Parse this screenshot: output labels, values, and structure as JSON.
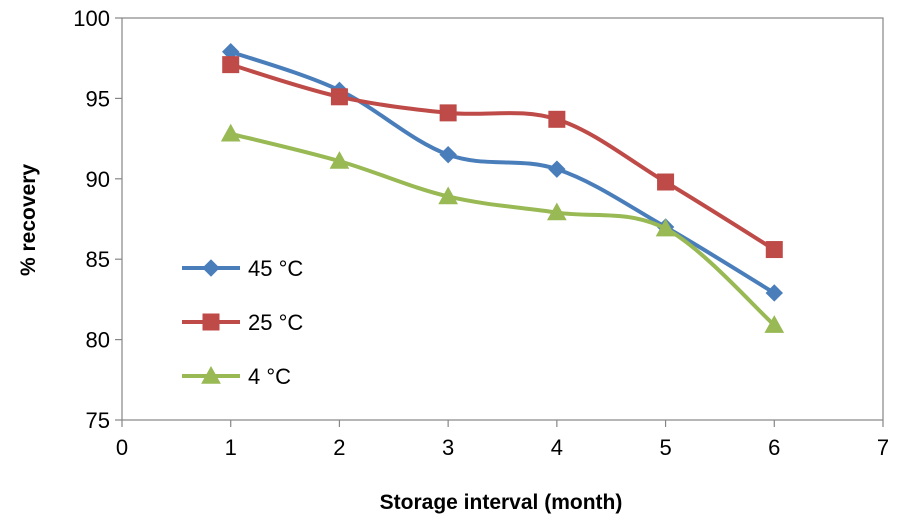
{
  "chart_data": {
    "type": "line",
    "title": "",
    "xlabel": "Storage interval (month)",
    "ylabel": "% recovery",
    "xlim": [
      0,
      7
    ],
    "ylim": [
      75,
      100
    ],
    "x_ticks": [
      "0",
      "1",
      "2",
      "3",
      "4",
      "5",
      "6",
      "7"
    ],
    "y_ticks": [
      "75",
      "80",
      "85",
      "90",
      "95",
      "100"
    ],
    "grid": false,
    "legend_position": "left",
    "smooth": true,
    "series": [
      {
        "name": "45 °C",
        "color": "#4a7ebb",
        "marker": "diamond",
        "x": [
          1,
          2,
          3,
          4,
          5,
          6
        ],
        "y": [
          97.9,
          95.5,
          91.5,
          90.6,
          87.0,
          82.9
        ]
      },
      {
        "name": "25 °C",
        "color": "#be4b48",
        "marker": "square",
        "x": [
          1,
          2,
          3,
          4,
          5,
          6
        ],
        "y": [
          97.1,
          95.1,
          94.1,
          93.7,
          89.8,
          85.6
        ]
      },
      {
        "name": "4 °C",
        "color": "#98b954",
        "marker": "triangle",
        "x": [
          1,
          2,
          3,
          4,
          5,
          6
        ],
        "y": [
          92.8,
          91.1,
          88.9,
          87.9,
          86.9,
          80.9
        ]
      }
    ]
  }
}
